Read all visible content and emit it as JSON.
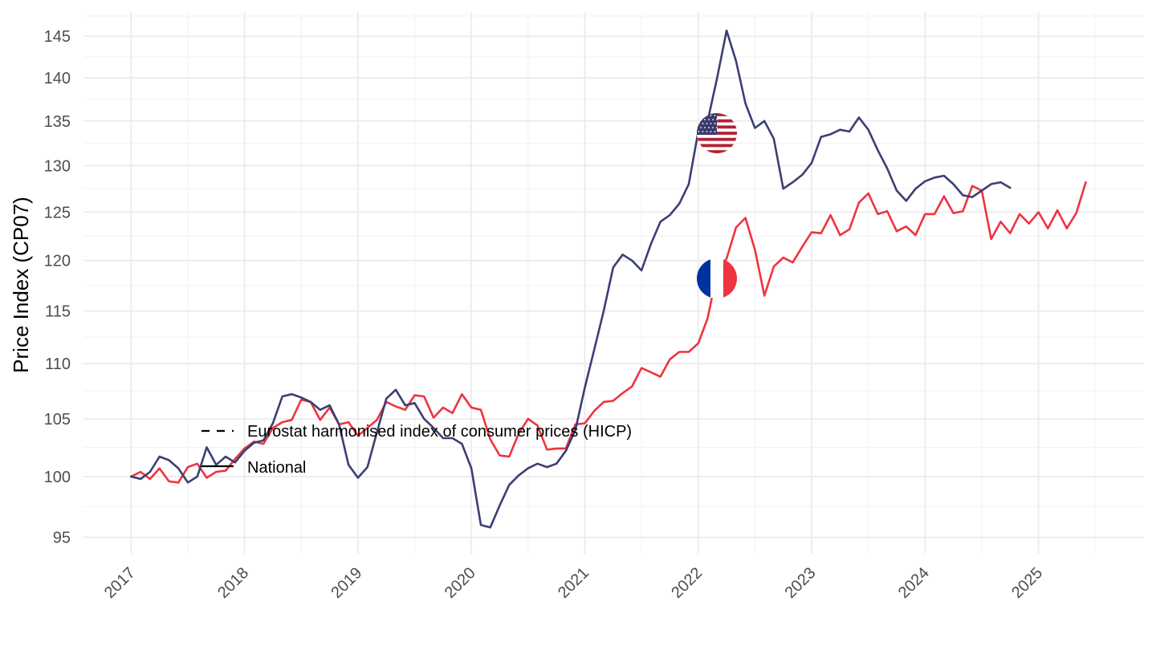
{
  "chart_data": {
    "type": "line",
    "title": "",
    "xlabel": "",
    "ylabel": "Price Index (CP07)",
    "ylim": [
      93.7,
      148
    ],
    "y_scale": "log",
    "x_range": [
      2016.58,
      2025.93
    ],
    "grid": true,
    "x_ticks": [
      "2017",
      "2018",
      "2019",
      "2020",
      "2021",
      "2022",
      "2023",
      "2024",
      "2025"
    ],
    "y_ticks": [
      "95",
      "100",
      "105",
      "110",
      "115",
      "120",
      "125",
      "130",
      "135",
      "140",
      "145"
    ],
    "legend": {
      "position": "inside-left",
      "entries": [
        {
          "label": "Eurostat harmonised index of consumer prices (HICP)",
          "linetype": "dashed"
        },
        {
          "label": "National",
          "linetype": "solid"
        }
      ]
    },
    "series": [
      {
        "name": "United States",
        "flag": "us-flag",
        "color": "#3B3F73",
        "start": 2017.0,
        "step_months": 1,
        "values": [
          100.0,
          99.8,
          100.4,
          101.7,
          101.4,
          100.7,
          99.5,
          100.0,
          102.5,
          101.0,
          101.7,
          101.2,
          102.2,
          102.9,
          103.1,
          104.6,
          107.0,
          107.2,
          106.9,
          106.5,
          105.8,
          106.2,
          104.5,
          101.0,
          99.9,
          100.8,
          103.8,
          106.8,
          107.6,
          106.2,
          106.4,
          105.0,
          104.2,
          103.3,
          103.3,
          102.8,
          100.7,
          96.0,
          95.8,
          97.6,
          99.3,
          100.1,
          100.7,
          101.1,
          100.8,
          101.1,
          102.2,
          104.0,
          107.8,
          111.3,
          115.0,
          119.3,
          120.6,
          120.0,
          119.0,
          121.7,
          124.0,
          124.7,
          125.9,
          128.0,
          133.8,
          135.0,
          140.0,
          145.7,
          142.0,
          137.0,
          134.2,
          135.0,
          133.0,
          127.5,
          128.2,
          129.0,
          130.3,
          133.2,
          133.5,
          134.0,
          133.8,
          135.4,
          134.0,
          131.7,
          129.7,
          127.3,
          126.2,
          127.5,
          128.3,
          128.7,
          128.9,
          128.0,
          126.8,
          126.6,
          127.3,
          128.0,
          128.2,
          127.6
        ]
      },
      {
        "name": "France",
        "flag": "fr-flag",
        "color": "#EF3340",
        "start": 2017.0,
        "step_months": 1,
        "values": [
          100.0,
          100.4,
          99.8,
          100.7,
          99.6,
          99.5,
          100.8,
          101.1,
          99.9,
          100.4,
          100.5,
          101.5,
          102.4,
          103.0,
          102.8,
          104.2,
          104.7,
          104.9,
          106.7,
          106.5,
          104.9,
          106.0,
          104.5,
          104.7,
          103.5,
          104.2,
          104.9,
          106.5,
          106.1,
          105.8,
          107.1,
          107.0,
          105.1,
          106.0,
          105.5,
          107.2,
          106.0,
          105.8,
          103.2,
          101.8,
          101.7,
          103.7,
          105.0,
          104.4,
          102.3,
          102.4,
          102.4,
          104.5,
          104.6,
          105.7,
          106.5,
          106.6,
          107.3,
          107.9,
          109.6,
          109.2,
          108.8,
          110.4,
          111.1,
          111.1,
          111.9,
          114.3,
          118.8,
          120.2,
          123.4,
          124.4,
          121.1,
          116.5,
          119.4,
          120.3,
          119.8,
          121.4,
          122.9,
          122.8,
          124.7,
          122.6,
          123.2,
          126.0,
          127.0,
          124.8,
          125.1,
          123.0,
          123.5,
          122.6,
          124.8,
          124.8,
          126.7,
          124.9,
          125.1,
          127.8,
          127.3,
          122.2,
          124.0,
          122.8,
          124.8,
          123.8,
          125.0,
          123.3,
          125.2,
          123.3,
          124.9,
          128.2
        ]
      }
    ]
  }
}
